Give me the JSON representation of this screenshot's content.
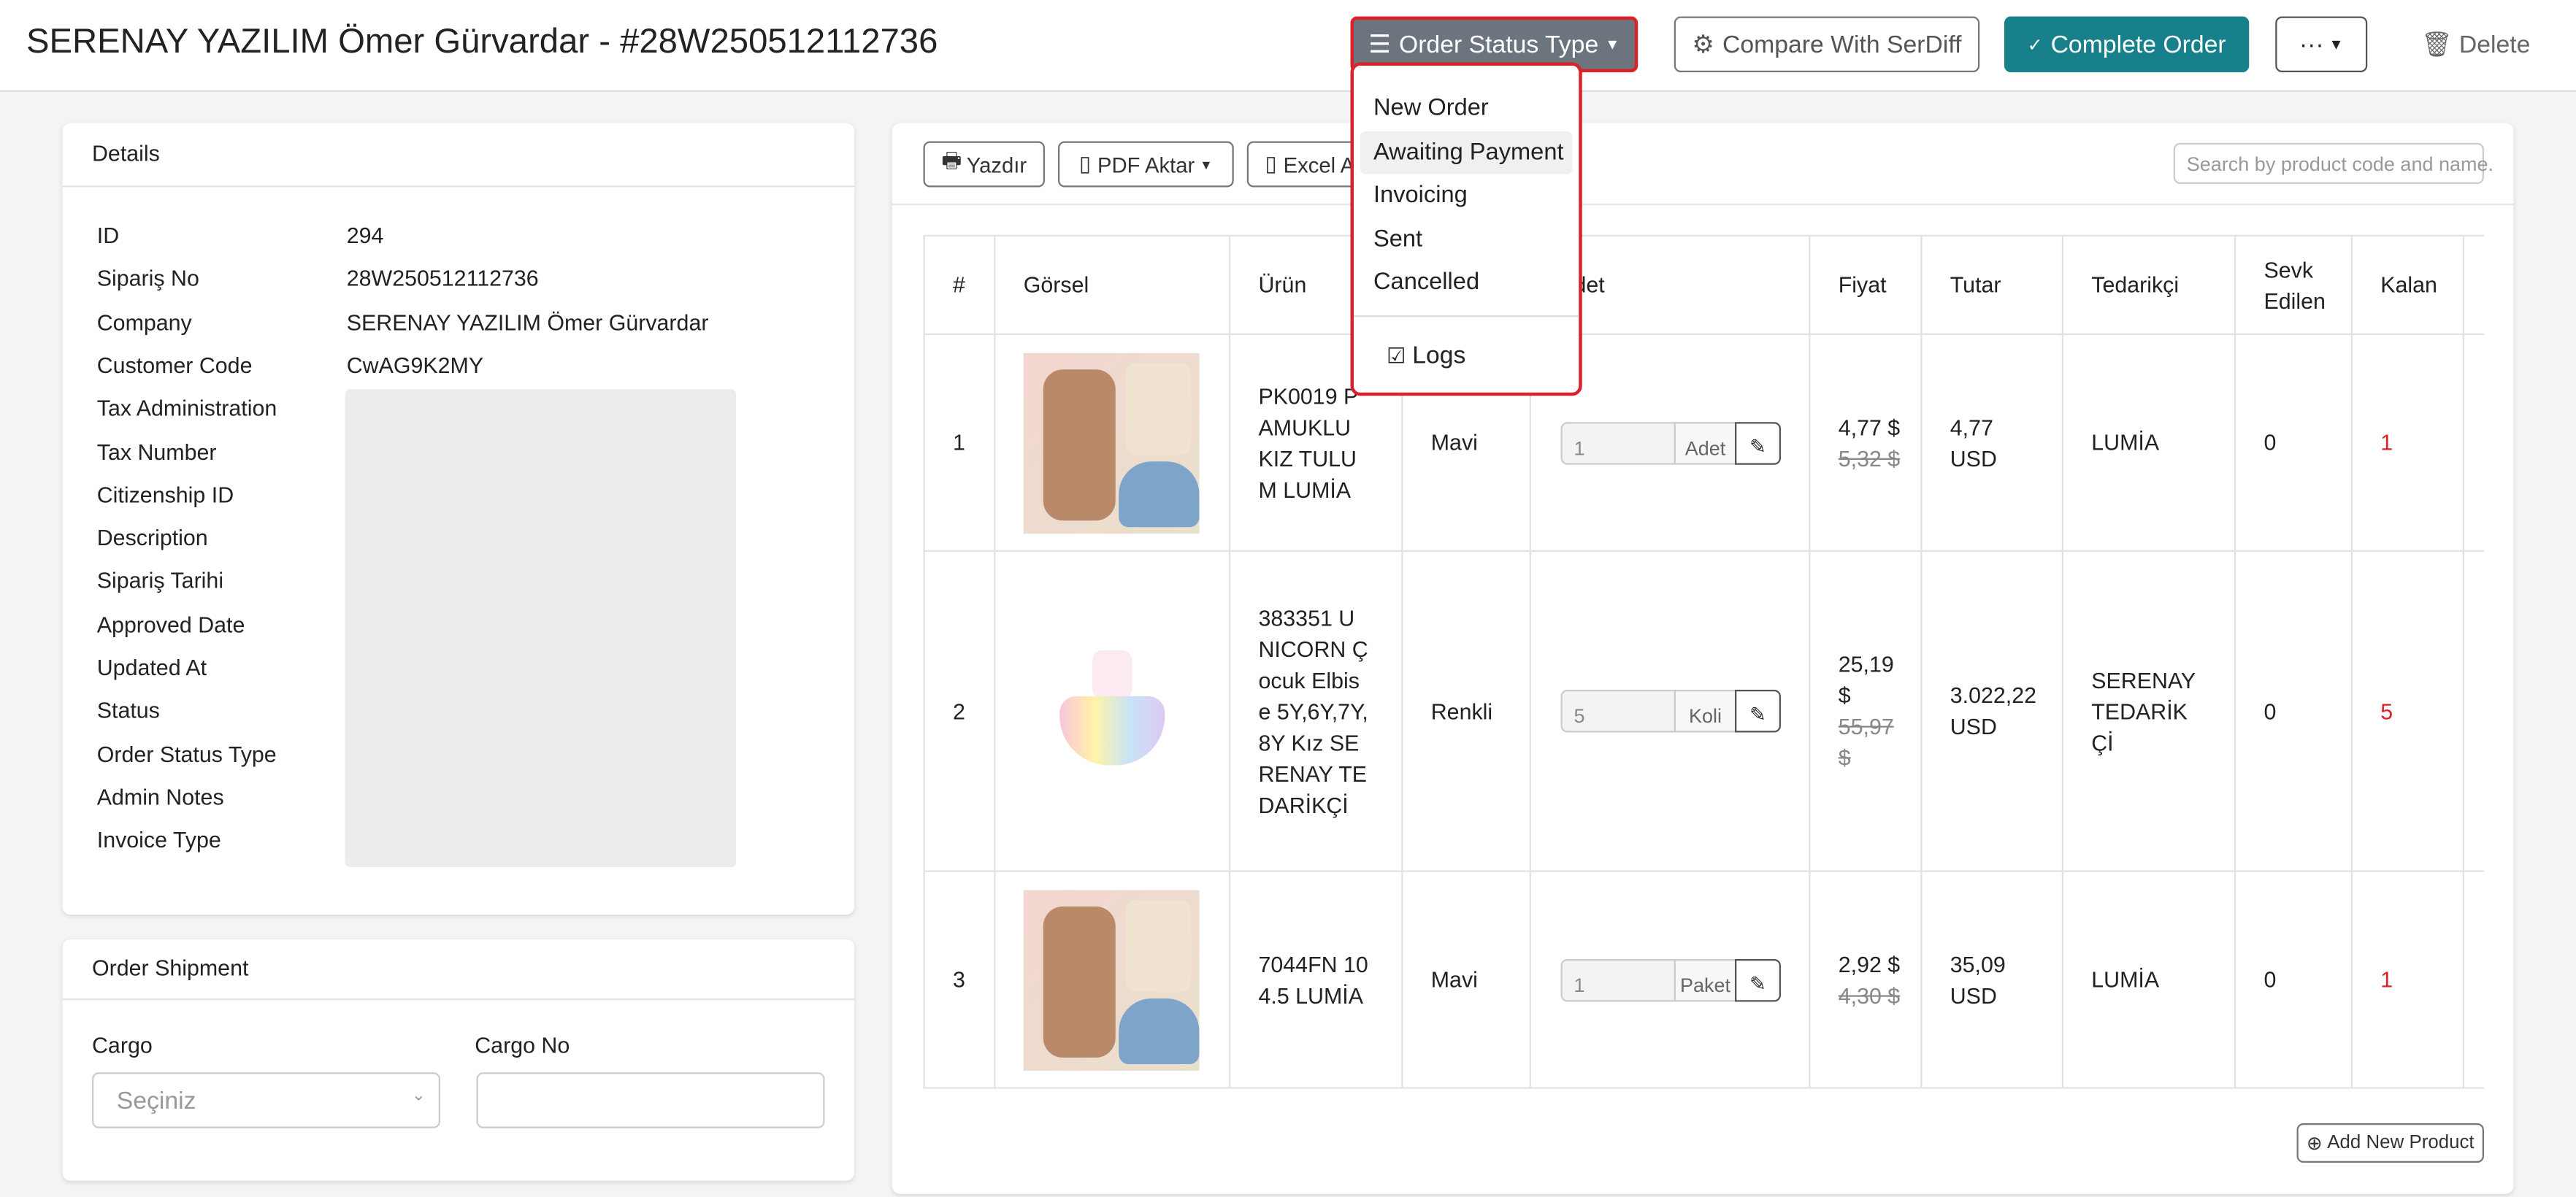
{
  "header": {
    "title": "SERENAY YAZILIM Ömer Gürvardar - #28W250512112736",
    "order_status_type": "Order Status Type",
    "compare": "Compare With SerDiff",
    "complete": "Complete Order",
    "more": "···",
    "delete": "Delete"
  },
  "dropdown": {
    "items": [
      "New Order",
      "Awaiting Payment",
      "Invoicing",
      "Sent",
      "Cancelled"
    ],
    "logs": "Logs"
  },
  "details": {
    "title": "Details",
    "rows": [
      [
        "ID",
        "294"
      ],
      [
        "Sipariş No",
        "28W250512112736"
      ],
      [
        "Company",
        "SERENAY YAZILIM Ömer Gürvardar"
      ],
      [
        "Customer Code",
        "CwAG9K2MY"
      ],
      [
        "Tax Administration",
        null
      ],
      [
        "Tax Number",
        null
      ],
      [
        "Citizenship ID",
        null
      ],
      [
        "Description",
        null
      ],
      [
        "Sipariş Tarihi",
        null
      ],
      [
        "Approved Date",
        null
      ],
      [
        "Updated At",
        null
      ],
      [
        "Status",
        null
      ],
      [
        "Order Status Type",
        null
      ],
      [
        "Admin Notes",
        null
      ],
      [
        "Invoice Type",
        null
      ]
    ]
  },
  "shipment": {
    "title": "Order Shipment",
    "cargo_label": "Cargo",
    "cargo_placeholder": "Seçiniz",
    "cargo_no_label": "Cargo No"
  },
  "toolbar": {
    "print": "Yazdır",
    "pdf": "PDF Aktar",
    "excel": "Excel Aktar",
    "search_placeholder": "Search by product code and name."
  },
  "table": {
    "headers": [
      "#",
      "Görsel",
      "Ürün",
      null,
      "Adet",
      "Fiyat",
      "Tutar",
      "Tedarikçi",
      "Sevk Edilen",
      "Kalan"
    ],
    "rows": [
      {
        "no": "1",
        "product": "PK0019 PAMUKLU KIZ TULUM LUMİA",
        "color": "Mavi",
        "qty": "1",
        "unit": "Adet",
        "price": "4,77 $",
        "old_price": "5,32 $",
        "total": "4,77 USD",
        "supplier": "LUMİA",
        "shipped": "0",
        "remaining": "1"
      },
      {
        "no": "2",
        "product": "383351 UNICORN Çocuk Elbise 5Y,6Y,7Y,8Y Kız SERENAY TEDARİKÇİ",
        "color": "Renkli",
        "qty": "5",
        "unit": "Koli",
        "price": "25,19 $",
        "old_price": "55,97 $",
        "total": "3.022,22 USD",
        "supplier": "SERENAY TEDARİKÇİ",
        "shipped": "0",
        "remaining": "5"
      },
      {
        "no": "3",
        "product": "7044FN 104.5 LUMİA",
        "color": "Mavi",
        "qty": "1",
        "unit": "Paket",
        "price": "2,92 $",
        "old_price": "4,30 $",
        "total": "35,09 USD",
        "supplier": "LUMİA",
        "shipped": "0",
        "remaining": "1"
      }
    ]
  },
  "add_product": "Add New Product"
}
